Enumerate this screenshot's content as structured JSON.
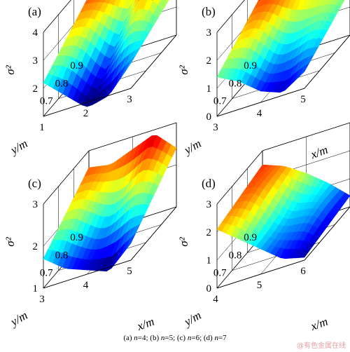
{
  "caption": [
    {
      "label": "(a) ",
      "var": "n",
      "value": "=4; "
    },
    {
      "label": "(b) ",
      "var": "n",
      "value": "=5; "
    },
    {
      "label": "(c) ",
      "var": "n",
      "value": "=6; "
    },
    {
      "label": "(d) ",
      "var": "n",
      "value": "=7"
    }
  ],
  "watermark": "@有色金属在线",
  "chart_data": [
    {
      "type": "surface",
      "panel_label": "(a)",
      "zlabel": "σ²",
      "xlabel": "x/m",
      "ylabel": "y/m",
      "xlim": [
        1,
        3
      ],
      "ylim": [
        0.6,
        0.9
      ],
      "zlim": [
        1,
        4
      ],
      "xticks": [
        "1",
        "2",
        "3"
      ],
      "yticks": [
        "0.7",
        "0.8",
        "0.9"
      ],
      "zticks": [
        "2",
        "3",
        "4"
      ],
      "z_back": [
        3.4,
        3.2,
        2.9,
        3.9,
        2.7
      ],
      "z_front": [
        2.2,
        1.5,
        0.8,
        1.0,
        1.9
      ]
    },
    {
      "type": "surface",
      "panel_label": "(b)",
      "zlabel": "σ²",
      "xlabel": "x/m",
      "ylabel": "y/m",
      "xlim": [
        3,
        5
      ],
      "ylim": [
        0.6,
        0.9
      ],
      "zlim": [
        0,
        3
      ],
      "xticks": [
        "3",
        "4",
        "5"
      ],
      "yticks": [
        "0.7",
        "0.8",
        "0.9"
      ],
      "zticks": [
        "0",
        "1",
        "2",
        "3"
      ],
      "z_back": [
        2.5,
        2.4,
        2.3,
        1.9,
        1.6
      ],
      "z_front": [
        1.4,
        1.0,
        0.4,
        0.1,
        0.6
      ]
    },
    {
      "type": "surface",
      "panel_label": "(c)",
      "zlabel": "σ²",
      "xlabel": "x/m",
      "ylabel": "y/m",
      "xlim": [
        3,
        5
      ],
      "ylim": [
        0.6,
        0.9
      ],
      "zlim": [
        1,
        3
      ],
      "xticks": [
        "3",
        "4",
        "5"
      ],
      "yticks": [
        "0.7",
        "0.8",
        "0.9"
      ],
      "zticks": [
        "1",
        "2",
        "3"
      ],
      "z_back": [
        2.6,
        2.5,
        2.7,
        2.9,
        2.4
      ],
      "z_front": [
        1.7,
        1.3,
        1.1,
        0.9,
        1.4
      ]
    },
    {
      "type": "surface",
      "panel_label": "(d)",
      "zlabel": "σ²",
      "xlabel": "x/m",
      "ylabel": "y/m",
      "xlim": [
        4,
        6
      ],
      "ylim": [
        0.6,
        0.9
      ],
      "zlim": [
        0,
        3
      ],
      "xticks": [
        "4",
        "5",
        "6"
      ],
      "yticks": [
        "0.7",
        "0.8",
        "0.9"
      ],
      "zticks": [
        "0",
        "1",
        "2",
        "3"
      ],
      "z_back": [
        2.5,
        2.2,
        1.7,
        1.1,
        0.4
      ],
      "z_front": [
        2.1,
        1.5,
        0.9,
        0.3,
        0.1
      ]
    }
  ]
}
